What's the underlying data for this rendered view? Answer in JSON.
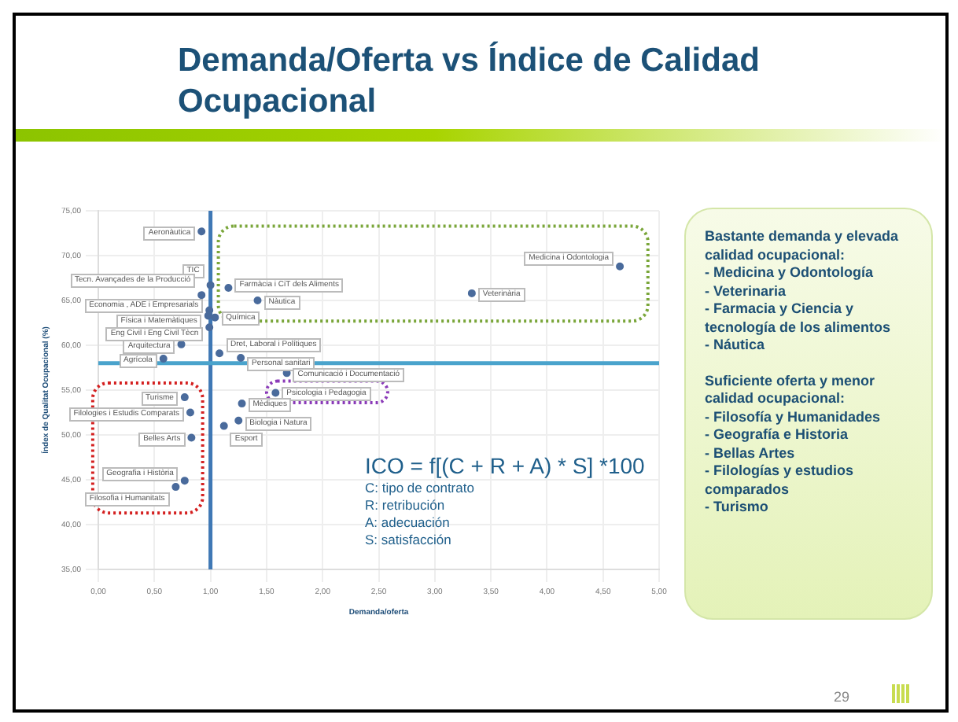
{
  "chart_data": [
    {
      "type": "scatter",
      "title": "Demanda/Oferta vs Índice de Calidad Ocupacional",
      "xlabel": "Demanda/oferta",
      "ylabel": "Índex de Qualitat Ocupacional (%)",
      "x": [
        0.92,
        1.0,
        0.92,
        0.99,
        0.98,
        1.04,
        0.99,
        0.74,
        0.58,
        1.16,
        1.42,
        1.08,
        1.27,
        3.33,
        4.65,
        1.68,
        1.58,
        1.28,
        1.25,
        1.12,
        0.77,
        0.82,
        0.83,
        0.77,
        0.69
      ],
      "values": [
        72.7,
        66.7,
        65.6,
        63.9,
        63.3,
        63.1,
        62.0,
        60.1,
        58.5,
        66.4,
        65.0,
        59.1,
        58.6,
        65.8,
        68.8,
        56.9,
        54.7,
        53.5,
        51.6,
        51.0,
        54.2,
        52.5,
        49.7,
        44.9,
        44.2
      ],
      "color": "#4a6b9c",
      "marker": "circle",
      "grid": true,
      "xlim": [
        0,
        5
      ],
      "xticks": [
        {
          "value": 0,
          "label": "0,00"
        },
        {
          "value": 0.5,
          "label": "0,50"
        },
        {
          "value": 1,
          "label": "1,00"
        },
        {
          "value": 1.5,
          "label": "1,50"
        },
        {
          "value": 2,
          "label": "2,00"
        },
        {
          "value": 2.5,
          "label": "2,50"
        },
        {
          "value": 3,
          "label": "3,00"
        },
        {
          "value": 3.5,
          "label": "3,50"
        },
        {
          "value": 4,
          "label": "4,00"
        },
        {
          "value": 4.5,
          "label": "4,50"
        },
        {
          "value": 5,
          "label": "5,00"
        }
      ],
      "ylim": [
        35,
        75
      ],
      "yticks": [
        {
          "value": 35,
          "label": "35,00"
        },
        {
          "value": 40,
          "label": "40,00"
        },
        {
          "value": 45,
          "label": "45,00"
        },
        {
          "value": 50,
          "label": "50,00"
        },
        {
          "value": 55,
          "label": "55,00"
        },
        {
          "value": 60,
          "label": "60,00"
        },
        {
          "value": 65,
          "label": "65,00"
        },
        {
          "value": 70,
          "label": "70,00"
        },
        {
          "value": 75,
          "label": "75,00"
        }
      ],
      "ref_lines": [
        {
          "axis": "x",
          "value": 1,
          "color": "#3f78b5"
        },
        {
          "axis": "y",
          "value": 58,
          "color": "#4aa3cc"
        }
      ],
      "annotations": [
        {
          "text": "Aeronàutica",
          "x": 0.92,
          "y": 72.7
        },
        {
          "text": "TIC",
          "x": 1.0,
          "y": 66.7
        },
        {
          "text": "Tecn. Avançades de la Producció",
          "x": 0.92,
          "y": 65.6
        },
        {
          "text": "Economia , ADE i Empresarials",
          "x": 0.99,
          "y": 63.9
        },
        {
          "text": "Física i Matemàtiques",
          "x": 0.98,
          "y": 63.3
        },
        {
          "text": "Química",
          "x": 1.04,
          "y": 63.1
        },
        {
          "text": "Eng Civil i Eng Civil Tècn",
          "x": 0.99,
          "y": 62.0
        },
        {
          "text": "Arquitectura",
          "x": 0.74,
          "y": 60.1
        },
        {
          "text": "Agrícola",
          "x": 0.58,
          "y": 58.5
        },
        {
          "text": "Farmàcia i CiT dels Aliments",
          "x": 1.16,
          "y": 66.4
        },
        {
          "text": "Nàutica",
          "x": 1.42,
          "y": 65.0
        },
        {
          "text": "Dret, Laboral i Polítiques",
          "x": 1.08,
          "y": 59.1
        },
        {
          "text": "Personal sanitari",
          "x": 1.27,
          "y": 58.6
        },
        {
          "text": "Veterinària",
          "x": 3.33,
          "y": 65.8
        },
        {
          "text": "Medicina i Odontologia",
          "x": 4.65,
          "y": 68.8
        },
        {
          "text": "Comunicació i Documentació",
          "x": 1.68,
          "y": 56.9
        },
        {
          "text": "Psicologia i Pedagogia",
          "x": 1.58,
          "y": 54.7
        },
        {
          "text": "Mèdiques",
          "x": 1.28,
          "y": 53.5
        },
        {
          "text": "Biologia i Natura",
          "x": 1.25,
          "y": 51.6
        },
        {
          "text": "Esport",
          "x": 1.12,
          "y": 51.0
        },
        {
          "text": "Turisme",
          "x": 0.77,
          "y": 54.2
        },
        {
          "text": "Filologies i Estudis Comparats",
          "x": 0.82,
          "y": 52.5
        },
        {
          "text": "Belles Arts",
          "x": 0.83,
          "y": 49.7
        },
        {
          "text": "Geografia i Història",
          "x": 0.77,
          "y": 44.9
        },
        {
          "text": "Filosofia i Humanitats",
          "x": 0.69,
          "y": 44.2
        },
        "ICO = f[(C + R + A) * S] *100",
        "C: tipo de contrato",
        "R: retribución",
        "A: adecuación",
        "S: satisfacción",
        "29"
      ]
    },
    {
      "type": "other",
      "annotations": [
        "Bastante demanda y elevada calidad ocupacional:",
        "- Medicina y Odontología",
        "- Veterinaria",
        "- Farmacia y Ciencia y tecnología de los alimentos",
        "- Náutica",
        "Suficiente oferta y menor calidad ocupacional:",
        "- Filosofía y Humanidades",
        "- Geografía e Historia",
        "- Bellas Artes",
        "- Filologías y estudios comparados",
        "- Turismo"
      ]
    }
  ]
}
